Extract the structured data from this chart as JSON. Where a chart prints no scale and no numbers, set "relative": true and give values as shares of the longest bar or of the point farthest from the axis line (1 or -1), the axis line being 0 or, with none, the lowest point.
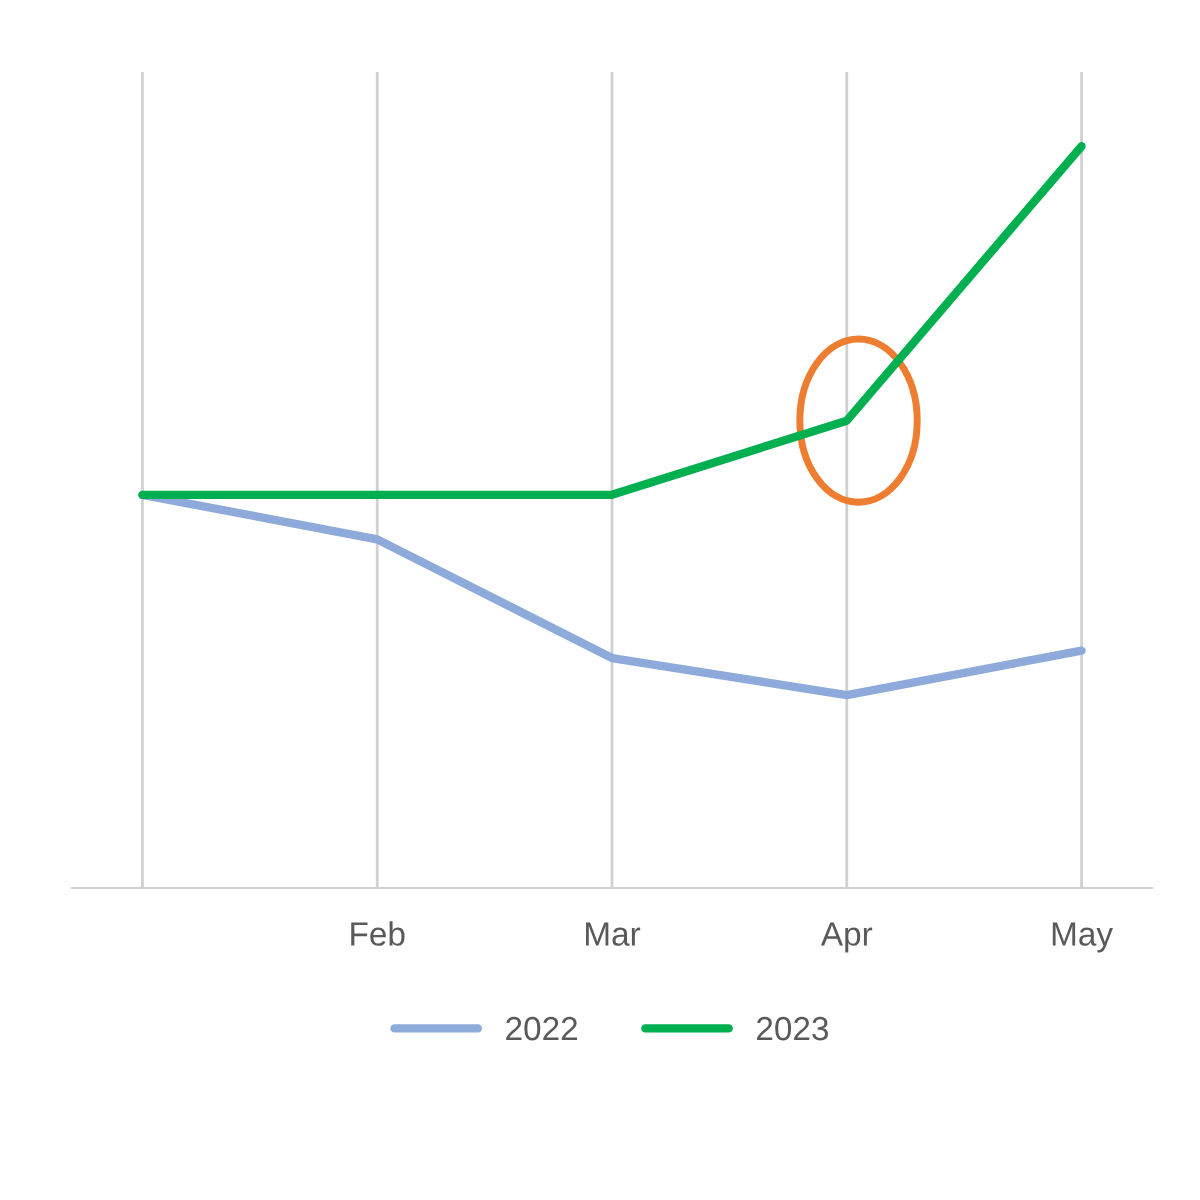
{
  "chart_data": {
    "type": "line",
    "relative": true,
    "categories": [
      null,
      "Feb",
      "Mar",
      "Apr",
      "May"
    ],
    "series": [
      {
        "name": "2022",
        "color": "#8eaadb",
        "values": [
          0.53,
          0.47,
          0.31,
          0.26,
          0.32
        ]
      },
      {
        "name": "2023",
        "color": "#00b050",
        "values": [
          0.53,
          0.53,
          0.53,
          0.63,
          1.0
        ]
      }
    ],
    "grid": "x",
    "legend": "bottom",
    "marker": "none",
    "line_style": "solid"
  }
}
